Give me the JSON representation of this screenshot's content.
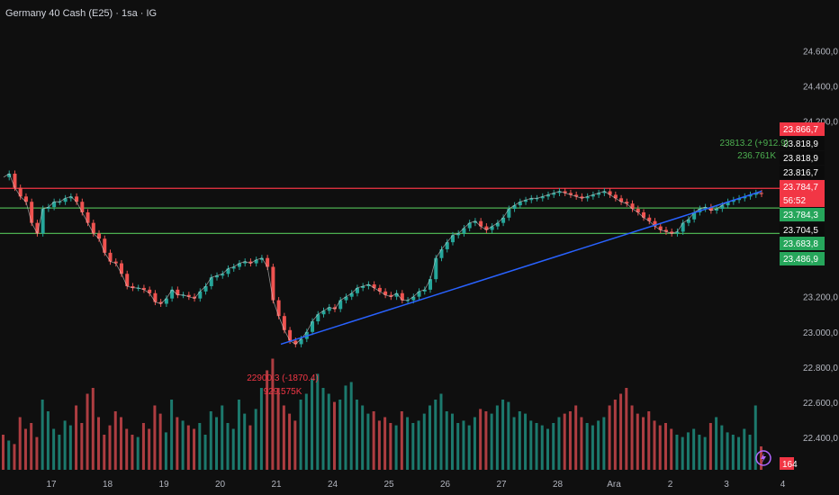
{
  "header": {
    "title": "Germany 40 Cash (E25) · 1sa · IG"
  },
  "chart_data": {
    "type": "candlestick",
    "title": "Germany 40 Cash (E25) · 1sa · IG",
    "ylim": [
      22200,
      24760
    ],
    "y_ticks": [
      "24.600,0",
      "24.400,0",
      "24.200,0",
      "23.200,0",
      "23.000,0",
      "22.800,0",
      "22.600,0",
      "22.400,0"
    ],
    "y_tick_values": [
      24600,
      24400,
      24200,
      23200,
      23000,
      22800,
      22600,
      22400
    ],
    "x_ticks": [
      "17",
      "18",
      "19",
      "20",
      "21",
      "24",
      "25",
      "26",
      "27",
      "28",
      "Ara",
      "2",
      "3",
      "4"
    ],
    "price_labels": [
      {
        "text": "23.866,7",
        "value": 23866.7,
        "color": "#f23645"
      },
      {
        "text": "23.818,9",
        "value": 23818.9,
        "color": "#000000"
      },
      {
        "text": "23.818,9",
        "value": 23818.9,
        "color": "#000000"
      },
      {
        "text": "23.816,7",
        "value": 23816.7,
        "color": "#000000"
      },
      {
        "text": "23.784,7",
        "value": 23784.7,
        "color": "#f23645"
      },
      {
        "text": "56:52",
        "value": 23784.7,
        "color": "#f23645"
      },
      {
        "text": "23.784,3",
        "value": 23784.3,
        "color": "#26a65b"
      },
      {
        "text": "23.704,5",
        "value": 23704.5,
        "color": "#000000"
      },
      {
        "text": "23.683,8",
        "value": 23683.8,
        "color": "#26a65b"
      },
      {
        "text": "23.486,9",
        "value": 23486.9,
        "color": "#26a65b"
      }
    ],
    "horizontal_lines": [
      {
        "value": 23816.7,
        "color": "#f23645"
      },
      {
        "value": 23704.5,
        "color": "#4caf50"
      },
      {
        "value": 23560.0,
        "color": "#4caf50"
      }
    ],
    "trendline": {
      "start_value": 22930,
      "end_value": 23800,
      "color": "#2962ff"
    },
    "annotations": [
      {
        "text": "23813.2 (+912.9)",
        "color": "#4caf50"
      },
      {
        "text": "236.761K",
        "color": "#4caf50"
      },
      {
        "text": "22900.3 (-1870.4)",
        "color": "#f23645"
      },
      {
        "text": "929.575K",
        "color": "#f23645"
      }
    ],
    "price_path": [
      [
        0,
        23880
      ],
      [
        1,
        23900
      ],
      [
        2,
        23820
      ],
      [
        3,
        23770
      ],
      [
        4,
        23740
      ],
      [
        5,
        23620
      ],
      [
        6,
        23560
      ],
      [
        7,
        23700
      ],
      [
        8,
        23710
      ],
      [
        9,
        23740
      ],
      [
        10,
        23740
      ],
      [
        11,
        23760
      ],
      [
        12,
        23770
      ],
      [
        13,
        23740
      ],
      [
        14,
        23680
      ],
      [
        15,
        23620
      ],
      [
        16,
        23560
      ],
      [
        17,
        23530
      ],
      [
        18,
        23450
      ],
      [
        19,
        23400
      ],
      [
        20,
        23390
      ],
      [
        21,
        23330
      ],
      [
        22,
        23260
      ],
      [
        23,
        23250
      ],
      [
        24,
        23250
      ],
      [
        25,
        23240
      ],
      [
        26,
        23220
      ],
      [
        27,
        23170
      ],
      [
        28,
        23160
      ],
      [
        29,
        23190
      ],
      [
        30,
        23240
      ],
      [
        31,
        23210
      ],
      [
        32,
        23210
      ],
      [
        33,
        23200
      ],
      [
        34,
        23190
      ],
      [
        35,
        23230
      ],
      [
        36,
        23260
      ],
      [
        37,
        23310
      ],
      [
        38,
        23320
      ],
      [
        39,
        23330
      ],
      [
        40,
        23360
      ],
      [
        41,
        23370
      ],
      [
        42,
        23390
      ],
      [
        43,
        23400
      ],
      [
        44,
        23390
      ],
      [
        45,
        23410
      ],
      [
        46,
        23420
      ],
      [
        47,
        23370
      ],
      [
        48,
        23180
      ],
      [
        49,
        23090
      ],
      [
        50,
        23010
      ],
      [
        51,
        22950
      ],
      [
        52,
        22930
      ],
      [
        53,
        22960
      ],
      [
        54,
        23000
      ],
      [
        55,
        23060
      ],
      [
        56,
        23100
      ],
      [
        57,
        23120
      ],
      [
        58,
        23140
      ],
      [
        59,
        23130
      ],
      [
        60,
        23180
      ],
      [
        61,
        23200
      ],
      [
        62,
        23220
      ],
      [
        63,
        23250
      ],
      [
        64,
        23260
      ],
      [
        65,
        23270
      ],
      [
        66,
        23250
      ],
      [
        67,
        23230
      ],
      [
        68,
        23210
      ],
      [
        69,
        23200
      ],
      [
        70,
        23220
      ],
      [
        71,
        23180
      ],
      [
        72,
        23180
      ],
      [
        73,
        23200
      ],
      [
        74,
        23230
      ],
      [
        75,
        23240
      ],
      [
        76,
        23300
      ],
      [
        77,
        23420
      ],
      [
        78,
        23470
      ],
      [
        79,
        23510
      ],
      [
        80,
        23550
      ],
      [
        81,
        23560
      ],
      [
        82,
        23590
      ],
      [
        83,
        23620
      ],
      [
        84,
        23630
      ],
      [
        85,
        23600
      ],
      [
        86,
        23580
      ],
      [
        87,
        23600
      ],
      [
        88,
        23620
      ],
      [
        89,
        23650
      ],
      [
        90,
        23700
      ],
      [
        91,
        23720
      ],
      [
        92,
        23740
      ],
      [
        93,
        23750
      ],
      [
        94,
        23760
      ],
      [
        95,
        23760
      ],
      [
        96,
        23770
      ],
      [
        97,
        23780
      ],
      [
        98,
        23790
      ],
      [
        99,
        23800
      ],
      [
        100,
        23790
      ],
      [
        101,
        23780
      ],
      [
        102,
        23770
      ],
      [
        103,
        23760
      ],
      [
        104,
        23770
      ],
      [
        105,
        23780
      ],
      [
        106,
        23790
      ],
      [
        107,
        23800
      ],
      [
        108,
        23780
      ],
      [
        109,
        23760
      ],
      [
        110,
        23740
      ],
      [
        111,
        23730
      ],
      [
        112,
        23700
      ],
      [
        113,
        23680
      ],
      [
        114,
        23650
      ],
      [
        115,
        23630
      ],
      [
        116,
        23600
      ],
      [
        117,
        23580
      ],
      [
        118,
        23570
      ],
      [
        119,
        23560
      ],
      [
        120,
        23570
      ],
      [
        121,
        23620
      ],
      [
        122,
        23640
      ],
      [
        123,
        23680
      ],
      [
        124,
        23700
      ],
      [
        125,
        23710
      ],
      [
        126,
        23690
      ],
      [
        127,
        23700
      ],
      [
        128,
        23720
      ],
      [
        129,
        23740
      ],
      [
        130,
        23750
      ],
      [
        131,
        23760
      ],
      [
        132,
        23770
      ],
      [
        133,
        23780
      ],
      [
        134,
        23790
      ],
      [
        135,
        23785
      ]
    ],
    "volumes": [
      30,
      25,
      22,
      45,
      35,
      40,
      28,
      60,
      50,
      35,
      30,
      42,
      38,
      55,
      40,
      65,
      70,
      45,
      30,
      38,
      50,
      45,
      35,
      30,
      28,
      40,
      35,
      55,
      48,
      32,
      60,
      45,
      42,
      38,
      35,
      40,
      30,
      50,
      45,
      55,
      40,
      35,
      60,
      48,
      38,
      52,
      70,
      85,
      95,
      70,
      55,
      48,
      42,
      60,
      65,
      78,
      82,
      70,
      65,
      58,
      60,
      72,
      75,
      60,
      55,
      48,
      50,
      42,
      45,
      40,
      38,
      50,
      45,
      40,
      42,
      48,
      55,
      60,
      65,
      50,
      48,
      40,
      42,
      38,
      45,
      52,
      50,
      48,
      55,
      60,
      58,
      45,
      50,
      48,
      42,
      40,
      38,
      35,
      40,
      45,
      48,
      50,
      55,
      45,
      40,
      38,
      42,
      45,
      55,
      60,
      65,
      70,
      55,
      48,
      45,
      50,
      42,
      38,
      40,
      35,
      30,
      28,
      32,
      35,
      30,
      28,
      40,
      45,
      38,
      32,
      30,
      28,
      35,
      30,
      55,
      20
    ],
    "volume_badge": "164"
  }
}
